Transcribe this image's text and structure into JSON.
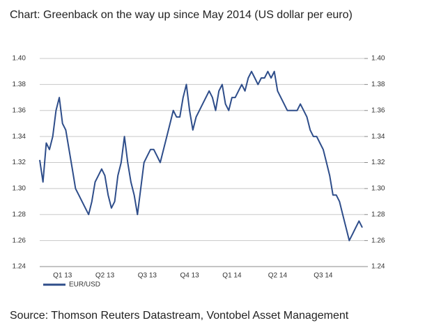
{
  "chart_data": {
    "type": "line",
    "title": "Chart: Greenback on the way up since May 2014 (US dollar per euro)",
    "source": "Source: Thomson Reuters Datastream, Vontobel Asset Management",
    "categories": [
      null,
      null,
      null,
      null,
      null,
      null,
      null,
      "Q1 13",
      null,
      null,
      null,
      null,
      null,
      null,
      null,
      null,
      null,
      null,
      null,
      null,
      "Q2 13",
      null,
      null,
      null,
      null,
      null,
      null,
      null,
      null,
      null,
      null,
      null,
      null,
      "Q3 13",
      null,
      null,
      null,
      null,
      null,
      null,
      null,
      null,
      null,
      null,
      null,
      null,
      "Q4 13",
      null,
      null,
      null,
      null,
      null,
      null,
      null,
      null,
      null,
      null,
      null,
      null,
      "Q1 14",
      null,
      null,
      null,
      null,
      null,
      null,
      null,
      null,
      null,
      null,
      null,
      null,
      null,
      "Q2 14",
      null,
      null,
      null,
      null,
      null,
      null,
      null,
      null,
      null,
      null,
      null,
      null,
      null,
      "Q3 14",
      null,
      null,
      null,
      null,
      null,
      null,
      null,
      null,
      null,
      null,
      null,
      null
    ],
    "series": [
      {
        "name": "EUR/USD",
        "color": "#2e4d8a",
        "values": [
          1.322,
          1.305,
          1.335,
          1.33,
          1.34,
          1.36,
          1.37,
          1.35,
          1.345,
          1.33,
          1.315,
          1.3,
          1.295,
          1.29,
          1.285,
          1.28,
          1.29,
          1.305,
          1.31,
          1.315,
          1.31,
          1.295,
          1.285,
          1.29,
          1.31,
          1.32,
          1.34,
          1.32,
          1.305,
          1.295,
          1.28,
          1.3,
          1.32,
          1.325,
          1.33,
          1.33,
          1.325,
          1.32,
          1.33,
          1.34,
          1.35,
          1.36,
          1.355,
          1.355,
          1.37,
          1.38,
          1.36,
          1.345,
          1.355,
          1.36,
          1.365,
          1.37,
          1.375,
          1.37,
          1.36,
          1.375,
          1.38,
          1.365,
          1.36,
          1.37,
          1.37,
          1.375,
          1.38,
          1.375,
          1.385,
          1.39,
          1.385,
          1.38,
          1.385,
          1.385,
          1.39,
          1.385,
          1.39,
          1.375,
          1.37,
          1.365,
          1.36,
          1.36,
          1.36,
          1.36,
          1.365,
          1.36,
          1.355,
          1.345,
          1.34,
          1.34,
          1.335,
          1.33,
          1.32,
          1.31,
          1.295,
          1.295,
          1.29,
          1.28,
          1.27,
          1.26,
          1.265,
          1.27,
          1.275,
          1.27
        ]
      }
    ],
    "ylim": [
      1.24,
      1.4
    ],
    "yticks": [
      1.24,
      1.26,
      1.28,
      {
        "value": 1.3,
        "label": "1.30"
      },
      1.32,
      1.34,
      1.36,
      1.38,
      {
        "value": 1.4,
        "label": "1.40"
      }
    ],
    "y2lim": [
      1.24,
      1.4
    ],
    "y2ticks": [
      1.24,
      1.26,
      1.28,
      {
        "value": 1.3,
        "label": "1.30"
      },
      1.32,
      1.34,
      1.36,
      1.38,
      {
        "value": 1.4,
        "label": "1.40"
      }
    ],
    "grid": true
  }
}
